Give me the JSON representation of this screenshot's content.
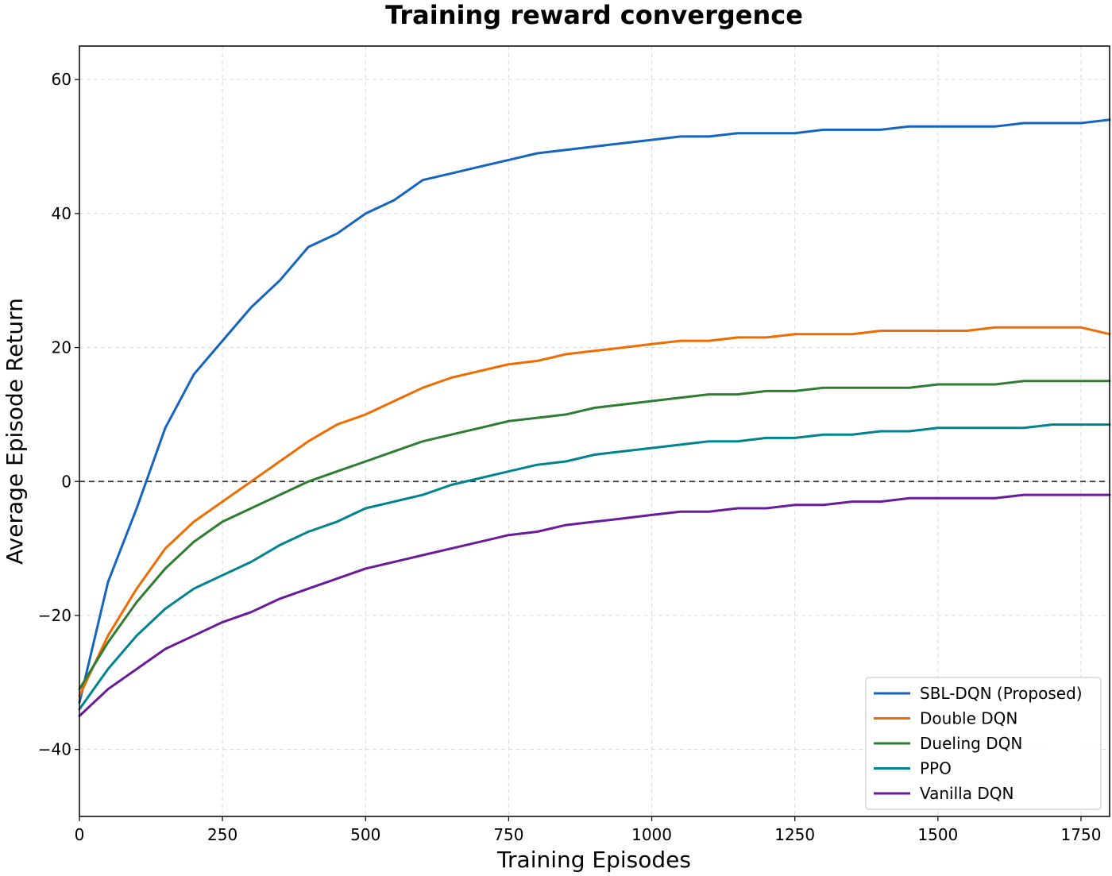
{
  "chart_data": {
    "type": "line",
    "title": "Training reward convergence",
    "xlabel": "Training Episodes",
    "ylabel": "Average Episode Return",
    "xlim": [
      0,
      1800
    ],
    "ylim": [
      -50,
      65
    ],
    "x_ticks": [
      0,
      250,
      500,
      750,
      1000,
      1250,
      1500,
      1750
    ],
    "y_ticks": [
      -40,
      -20,
      0,
      20,
      40,
      60
    ],
    "x_tick_labels": [
      "0",
      "250",
      "500",
      "750",
      "1000",
      "1250",
      "1500",
      "1750"
    ],
    "y_tick_labels": [
      "−40",
      "−20",
      "0",
      "20",
      "40",
      "60"
    ],
    "grid": true,
    "reference_line": {
      "y": 0,
      "style": "dashed",
      "color": "#333333"
    },
    "legend_position": "lower-right",
    "x": [
      0,
      50,
      100,
      150,
      200,
      250,
      300,
      350,
      400,
      450,
      500,
      550,
      600,
      650,
      700,
      750,
      800,
      850,
      900,
      950,
      1000,
      1050,
      1100,
      1150,
      1200,
      1250,
      1300,
      1350,
      1400,
      1450,
      1500,
      1550,
      1600,
      1650,
      1700,
      1750,
      1800
    ],
    "series": [
      {
        "name": "SBL-DQN (Proposed)",
        "color": "#1565c0",
        "values": [
          -33,
          -15,
          -4,
          8,
          16,
          21,
          26,
          30,
          35,
          37,
          40,
          42,
          45,
          46,
          47,
          48,
          49,
          49.5,
          50,
          50.5,
          51,
          51.5,
          51.5,
          52,
          52,
          52,
          52.5,
          52.5,
          52.5,
          53,
          53,
          53,
          53,
          53.5,
          53.5,
          53.5,
          54
        ]
      },
      {
        "name": "Double DQN",
        "color": "#ef6c00",
        "values": [
          -32,
          -23,
          -16,
          -10,
          -6,
          -3,
          0,
          3,
          6,
          8.5,
          10,
          12,
          14,
          15.5,
          16.5,
          17.5,
          18,
          19,
          19.5,
          20,
          20.5,
          21,
          21,
          21.5,
          21.5,
          22,
          22,
          22,
          22.5,
          22.5,
          22.5,
          22.5,
          23,
          23,
          23,
          23,
          22
        ]
      },
      {
        "name": "Dueling DQN",
        "color": "#2e7d32",
        "values": [
          -31,
          -24,
          -18,
          -13,
          -9,
          -6,
          -4,
          -2,
          0,
          1.5,
          3,
          4.5,
          6,
          7,
          8,
          9,
          9.5,
          10,
          11,
          11.5,
          12,
          12.5,
          13,
          13,
          13.5,
          13.5,
          14,
          14,
          14,
          14,
          14.5,
          14.5,
          14.5,
          15,
          15,
          15,
          15
        ]
      },
      {
        "name": "PPO",
        "color": "#00838f",
        "values": [
          -34,
          -28,
          -23,
          -19,
          -16,
          -14,
          -12,
          -9.5,
          -7.5,
          -6,
          -4,
          -3,
          -2,
          -0.5,
          0.5,
          1.5,
          2.5,
          3,
          4,
          4.5,
          5,
          5.5,
          6,
          6,
          6.5,
          6.5,
          7,
          7,
          7.5,
          7.5,
          8,
          8,
          8,
          8,
          8.5,
          8.5,
          8.5
        ]
      },
      {
        "name": "Vanilla DQN",
        "color": "#6a1b9a",
        "values": [
          -35,
          -31,
          -28,
          -25,
          -23,
          -21,
          -19.5,
          -17.5,
          -16,
          -14.5,
          -13,
          -12,
          -11,
          -10,
          -9,
          -8,
          -7.5,
          -6.5,
          -6,
          -5.5,
          -5,
          -4.5,
          -4.5,
          -4,
          -4,
          -3.5,
          -3.5,
          -3,
          -3,
          -2.5,
          -2.5,
          -2.5,
          -2.5,
          -2,
          -2,
          -2,
          -2
        ]
      }
    ]
  }
}
